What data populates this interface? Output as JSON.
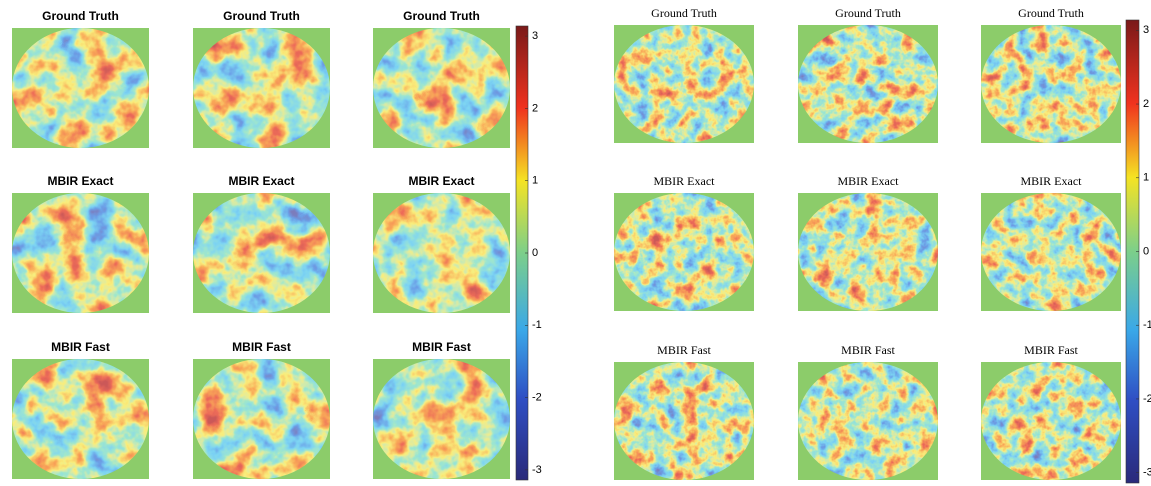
{
  "figures": [
    {
      "panels": [
        [
          "Ground Truth",
          "Ground Truth",
          "Ground Truth"
        ],
        [
          "MBIR Exact",
          "MBIR Exact",
          "MBIR Exact"
        ],
        [
          "MBIR Fast",
          "MBIR Fast",
          "MBIR Fast"
        ]
      ],
      "colorbar": {
        "lim": [
          -3.14,
          3.14
        ],
        "ticks": [
          -3,
          -2,
          -1,
          0,
          1,
          2,
          3
        ]
      }
    },
    {
      "panels": [
        [
          "Ground Truth",
          "Ground Truth",
          "Ground Truth"
        ],
        [
          "MBIR Exact",
          "MBIR Exact",
          "MBIR Exact"
        ],
        [
          "MBIR Fast",
          "MBIR Fast",
          "MBIR Fast"
        ]
      ],
      "colorbar": {
        "lim": [
          -3.14,
          3.14
        ],
        "ticks": [
          -3,
          -2,
          -1,
          0,
          1,
          2,
          3
        ]
      }
    }
  ]
}
